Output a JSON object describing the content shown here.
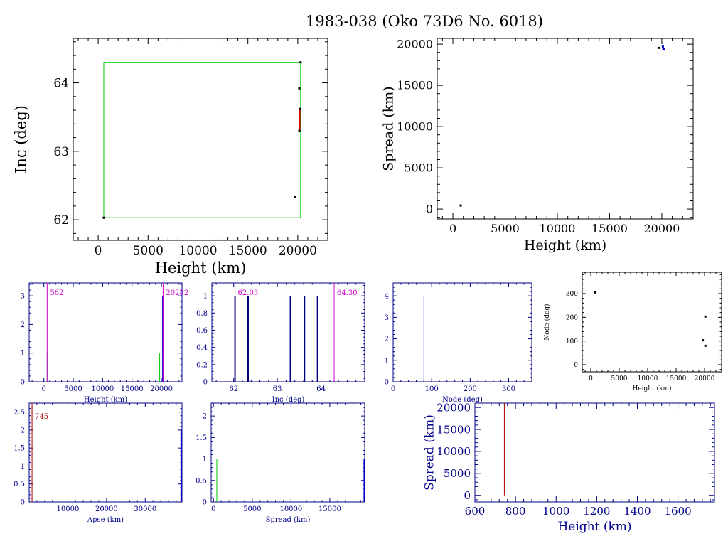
{
  "page": {
    "title": "1983-038 (Oko 73D6 No. 6018)"
  },
  "colors": {
    "axis_black": "#000000",
    "axis_blue": "#00008b",
    "green": "#00c800",
    "red": "#cc0000",
    "magenta": "#d000d0",
    "blue": "#0000cc",
    "navy": "#000080",
    "dark_red": "#aa0000"
  },
  "chart_data": [
    {
      "id": "inc-vs-height",
      "type": "scatter",
      "xlabel": "Height (km)",
      "ylabel": "Inc (deg)",
      "xlim": [
        -2500,
        23000
      ],
      "ylim": [
        61.7,
        64.65
      ],
      "xticks": [
        0,
        5000,
        10000,
        15000,
        20000
      ],
      "yticks": [
        62,
        63,
        64
      ],
      "box": {
        "x": [
          562,
          20282
        ],
        "y": [
          62.03,
          64.3
        ]
      },
      "points": [
        {
          "x": 562,
          "y": 62.03
        },
        {
          "x": 19700,
          "y": 62.33
        },
        {
          "x": 20150,
          "y": 63.3
        },
        {
          "x": 20200,
          "y": 63.62
        },
        {
          "x": 20150,
          "y": 63.92
        },
        {
          "x": 20282,
          "y": 64.3
        }
      ],
      "red_segment": {
        "x": 20200,
        "y": [
          63.3,
          63.62
        ]
      }
    },
    {
      "id": "spread-vs-height",
      "type": "scatter",
      "xlabel": "Height (km)",
      "ylabel": "Spread (km)",
      "xlim": [
        -1500,
        23000
      ],
      "ylim": [
        -1200,
        20700
      ],
      "xticks": [
        0,
        5000,
        10000,
        15000,
        20000
      ],
      "yticks": [
        0,
        5000,
        10000,
        15000,
        20000
      ],
      "points": [
        {
          "x": 745,
          "y": 430,
          "c": "black"
        },
        {
          "x": 19700,
          "y": 19550,
          "c": "black"
        },
        {
          "x": 20100,
          "y": 19700,
          "c": "blue"
        },
        {
          "x": 20150,
          "y": 19450,
          "c": "blue"
        },
        {
          "x": 20180,
          "y": 19350,
          "c": "blue"
        }
      ]
    },
    {
      "id": "hist-height",
      "type": "bar",
      "xlabel": "Height (km)",
      "xlim": [
        -2500,
        23500
      ],
      "ylim": [
        0,
        3.45
      ],
      "xticks": [
        0,
        5000,
        10000,
        15000,
        20000
      ],
      "yticks": [
        0,
        1,
        2,
        3
      ],
      "bars": [
        {
          "x": 20250,
          "v": 3
        }
      ],
      "green_bars": [
        {
          "x": 562,
          "v": 1
        },
        {
          "x": 19700,
          "v": 1
        }
      ],
      "markers": [
        {
          "x": 562,
          "label": "562"
        },
        {
          "x": 20282,
          "label": "20282"
        }
      ]
    },
    {
      "id": "hist-inc",
      "type": "bar",
      "xlabel": "Inc (deg)",
      "xlim": [
        61.5,
        65.0
      ],
      "ylim": [
        0,
        1.15
      ],
      "xticks": [
        62,
        63,
        64
      ],
      "yticks": [
        0,
        0.2,
        0.4,
        0.6,
        0.8,
        1
      ],
      "bars": [
        {
          "x": 62.03,
          "v": 1
        },
        {
          "x": 62.33,
          "v": 1
        },
        {
          "x": 63.3,
          "v": 1
        },
        {
          "x": 63.62,
          "v": 1
        },
        {
          "x": 63.92,
          "v": 1
        }
      ],
      "markers": [
        {
          "x": 62.03,
          "label": "62.03"
        },
        {
          "x": 64.3,
          "label": "64.30"
        }
      ]
    },
    {
      "id": "hist-node",
      "type": "bar",
      "xlabel": "Node (deg)",
      "xlim": [
        0,
        360
      ],
      "ylim": [
        0,
        4.6
      ],
      "xticks": [
        0,
        100,
        200,
        300
      ],
      "yticks": [
        0,
        1,
        2,
        3,
        4
      ],
      "bars": [
        {
          "x": 80,
          "v": 4
        }
      ]
    },
    {
      "id": "node-vs-height",
      "type": "scatter",
      "xlabel": "Height (km)",
      "ylabel": "Node (deg)",
      "xlim": [
        -1500,
        23000
      ],
      "ylim": [
        -30,
        390
      ],
      "xticks": [
        0,
        5000,
        10000,
        15000,
        20000
      ],
      "yticks": [
        0,
        100,
        200,
        300
      ],
      "points": [
        {
          "x": 745,
          "y": 305
        },
        {
          "x": 19700,
          "y": 103
        },
        {
          "x": 20150,
          "y": 203
        },
        {
          "x": 20150,
          "y": 80
        }
      ]
    },
    {
      "id": "hist-apse",
      "type": "bar",
      "xlabel": "Apse (km)",
      "xlim": [
        0,
        39500
      ],
      "ylim": [
        0,
        2.75
      ],
      "xticks": [
        10000,
        20000,
        30000
      ],
      "yticks": [
        0,
        0.5,
        1,
        1.5,
        2,
        2.5
      ],
      "bars": [
        {
          "x": 39300,
          "v": 2
        }
      ],
      "markers": [
        {
          "x": 745,
          "label": "745"
        }
      ]
    },
    {
      "id": "hist-spread",
      "type": "bar",
      "xlabel": "Spread (km)",
      "xlim": [
        -300,
        19500
      ],
      "ylim": [
        0,
        2.3
      ],
      "xticks": [
        0,
        5000,
        10000,
        15000
      ],
      "yticks": [
        0,
        0.5,
        1,
        1.5,
        2
      ],
      "bars": [
        {
          "x": 19450,
          "v": 1
        }
      ],
      "green_bars": [
        {
          "x": 430,
          "v": 1
        }
      ]
    },
    {
      "id": "spread-vs-height-zoom",
      "type": "line",
      "xlabel": "Height (km)",
      "ylabel": "Spread (km)",
      "xlim": [
        600,
        1780
      ],
      "ylim": [
        -1500,
        21000
      ],
      "xticks": [
        600,
        800,
        1000,
        1200,
        1400,
        1600
      ],
      "yticks": [
        0,
        5000,
        10000,
        15000,
        20000
      ],
      "segment": {
        "x": 745,
        "y": [
          0,
          21000
        ]
      }
    }
  ]
}
